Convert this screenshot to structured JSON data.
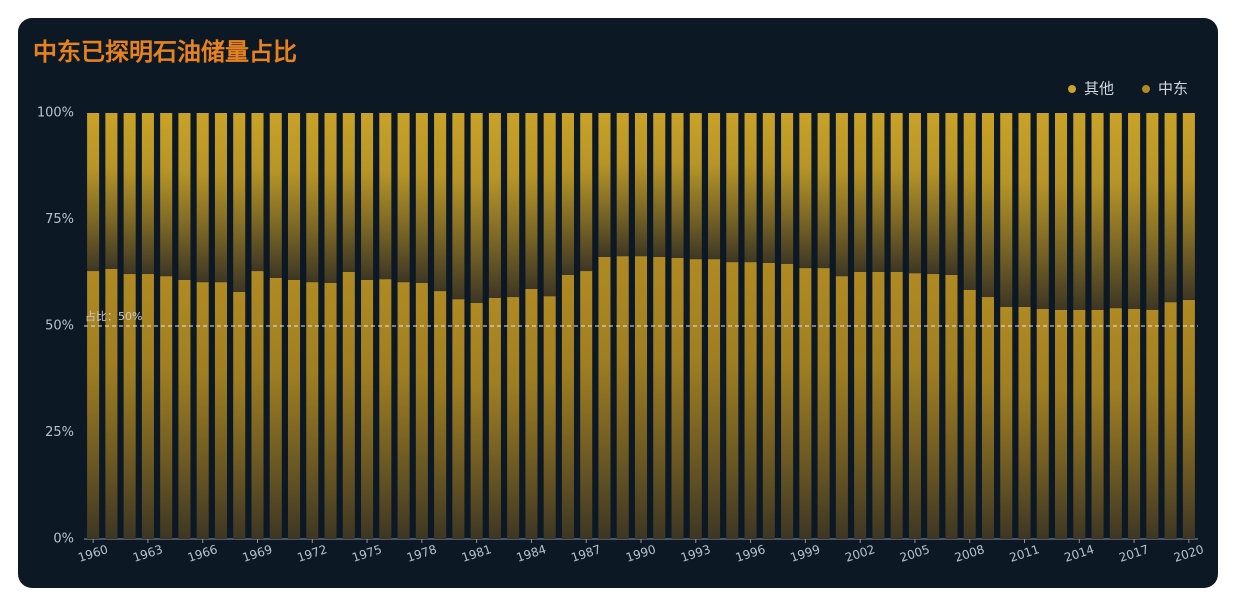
{
  "chart_data": {
    "type": "stacked_bar",
    "title": "中东已探明石油储量占比",
    "categories": [
      "1960",
      null,
      null,
      "1963",
      null,
      null,
      "1966",
      null,
      null,
      "1969",
      null,
      null,
      "1972",
      null,
      null,
      "1975",
      null,
      null,
      "1978",
      null,
      null,
      "1981",
      null,
      null,
      "1984",
      null,
      null,
      "1987",
      null,
      null,
      "1990",
      null,
      null,
      "1993",
      null,
      null,
      "1996",
      null,
      null,
      "1999",
      null,
      null,
      "2002",
      null,
      null,
      "2005",
      null,
      null,
      "2008",
      null,
      null,
      "2011",
      null,
      null,
      "2014",
      null,
      null,
      "2017",
      null,
      null,
      "2020"
    ],
    "series": [
      {
        "name": "其他",
        "color": "#c9a227",
        "values": [
          37.1,
          36.6,
          37.8,
          37.8,
          38.3,
          39.2,
          39.7,
          39.7,
          42.0,
          37.1,
          38.7,
          39.2,
          39.7,
          39.9,
          37.3,
          39.2,
          39.0,
          39.7,
          39.9,
          41.8,
          43.7,
          44.6,
          43.4,
          43.2,
          41.3,
          43.0,
          38.0,
          37.1,
          33.8,
          33.6,
          33.6,
          33.8,
          34.0,
          34.3,
          34.3,
          35.0,
          35.0,
          35.2,
          35.4,
          36.4,
          36.4,
          38.3,
          37.3,
          37.3,
          37.3,
          37.6,
          37.8,
          38.0,
          41.5,
          43.2,
          45.5,
          45.5,
          46.0,
          46.2,
          46.2,
          46.2,
          45.8,
          46.0,
          46.2,
          44.4,
          43.9
        ]
      },
      {
        "name": "中东",
        "color": "#b08a22",
        "values": [
          62.9,
          63.4,
          62.2,
          62.2,
          61.7,
          60.8,
          60.3,
          60.3,
          58.0,
          62.9,
          61.3,
          60.8,
          60.3,
          60.1,
          62.7,
          60.8,
          61.0,
          60.3,
          60.1,
          58.2,
          56.3,
          55.4,
          56.6,
          56.8,
          58.7,
          57.0,
          62.0,
          62.9,
          66.2,
          66.4,
          66.4,
          66.2,
          66.0,
          65.7,
          65.7,
          65.0,
          65.0,
          64.8,
          64.6,
          63.6,
          63.6,
          61.7,
          62.7,
          62.7,
          62.7,
          62.4,
          62.2,
          62.0,
          58.5,
          56.8,
          54.5,
          54.5,
          54.0,
          53.8,
          53.8,
          53.8,
          54.2,
          54.0,
          53.8,
          55.6,
          56.1
        ]
      }
    ],
    "ylim": [
      0,
      100
    ],
    "yticks": [
      {
        "value": 0,
        "label": "0%"
      },
      {
        "value": 25,
        "label": "25%"
      },
      {
        "value": 50,
        "label": "50%"
      },
      {
        "value": 75,
        "label": "75%"
      },
      {
        "value": 100,
        "label": "100%"
      }
    ],
    "reference_line": {
      "value": 50,
      "label": "占比：50%"
    },
    "grid": false
  }
}
